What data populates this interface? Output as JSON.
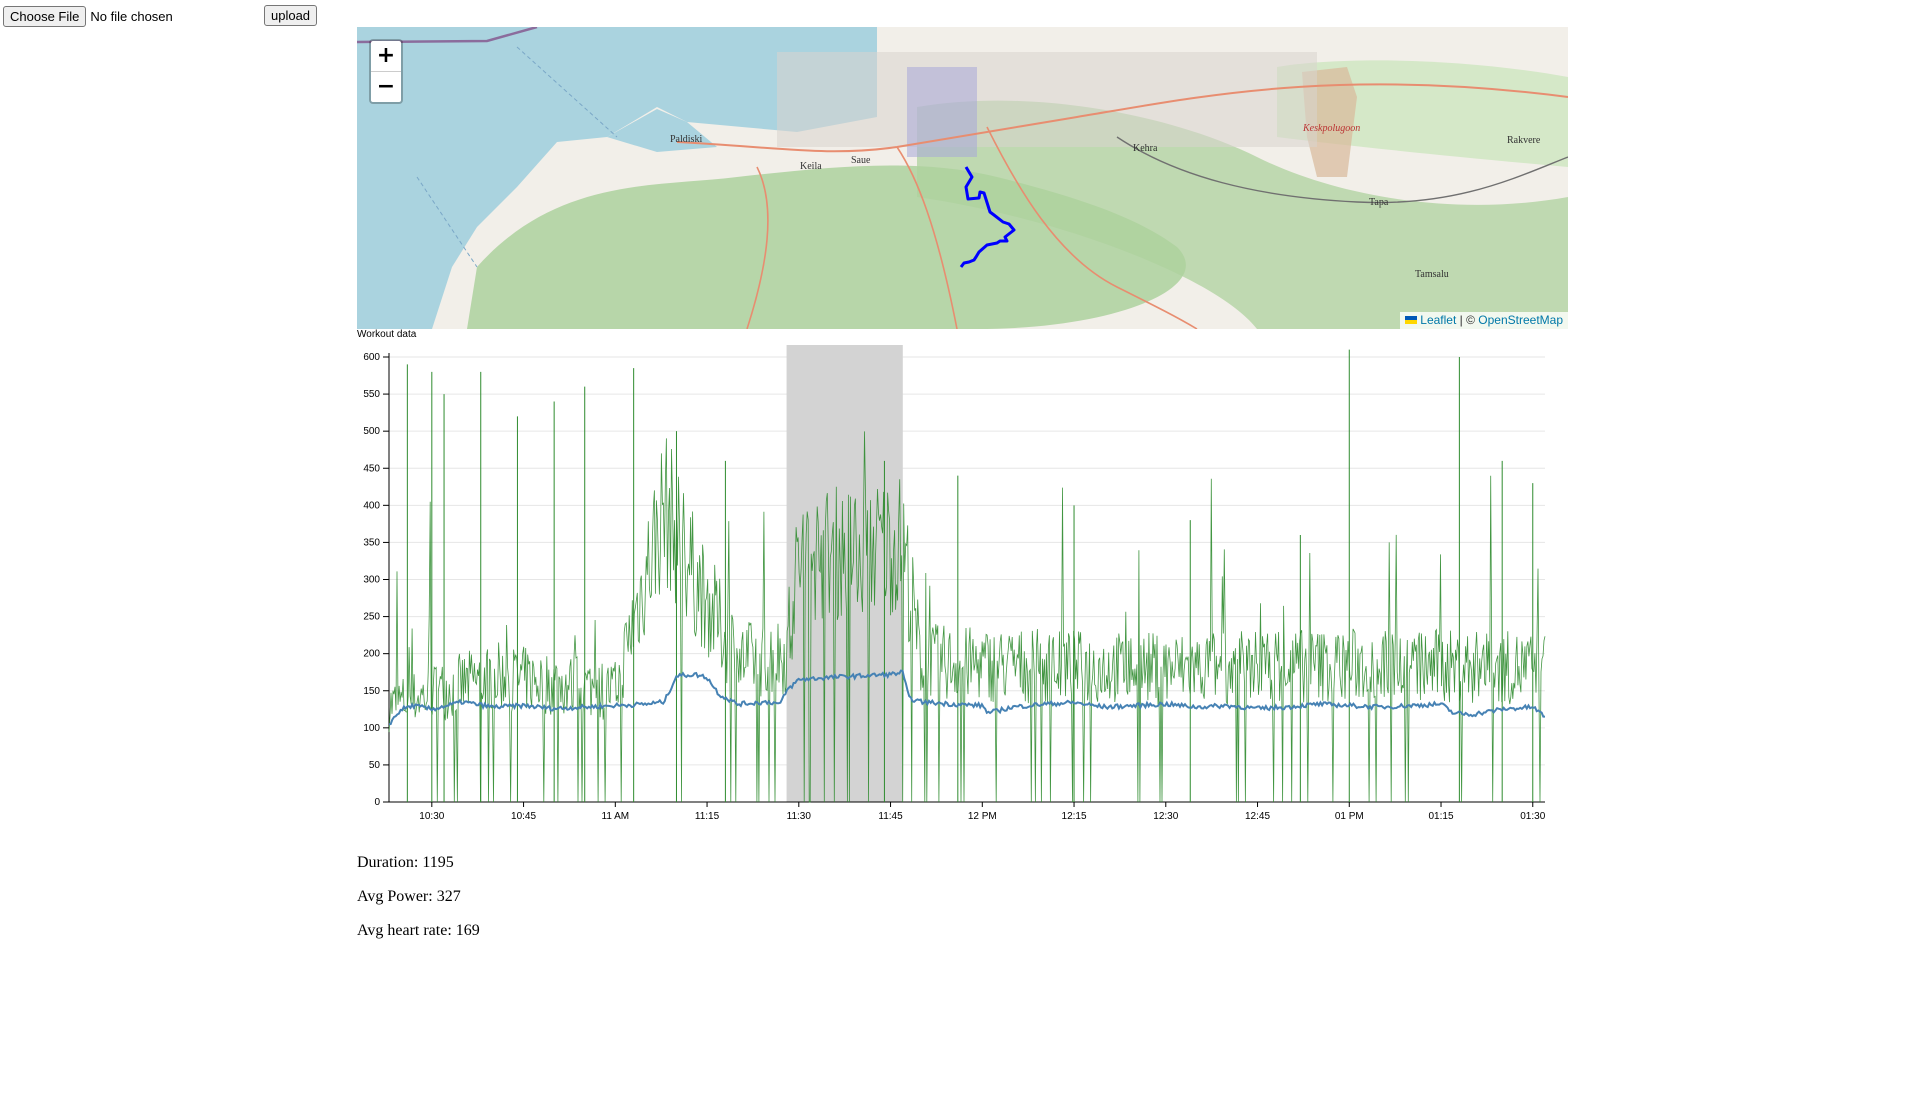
{
  "upload": {
    "choose_label": "Choose File",
    "file_status": "No file chosen",
    "upload_label": "upload"
  },
  "map": {
    "zoom_in": "+",
    "zoom_out": "−",
    "attribution": {
      "leaflet": "Leaflet",
      "separator": " | © ",
      "osm": "OpenStreetMap"
    },
    "places": [
      "Paldiski",
      "Keila",
      "Saue",
      "Kehra",
      "Keskpolugoon",
      "Rakvere",
      "Tapa",
      "Tamsalu"
    ],
    "colors": {
      "sea": "#aad3df",
      "land": "#f2efe9",
      "forest": "#add19e",
      "route": "#0000ff"
    }
  },
  "chart": {
    "title": "Workout data",
    "colors": {
      "power": "#2e8b2e",
      "heart_rate": "#4682b4",
      "highlight": "#d3d3d3"
    }
  },
  "chart_data": {
    "type": "line",
    "ylim": [
      0,
      600
    ],
    "y_ticks": [
      0,
      50,
      100,
      150,
      200,
      250,
      300,
      350,
      400,
      450,
      500,
      550,
      600
    ],
    "x_tick_labels": [
      "10:30",
      "10:45",
      "11 AM",
      "11:15",
      "11:30",
      "11:45",
      "12 PM",
      "12:15",
      "12:30",
      "12:45",
      "01 PM",
      "01:15",
      "01:30"
    ],
    "x_start": "10:23",
    "x_end": "13:32",
    "highlight": [
      "11:28",
      "11:47"
    ],
    "series": [
      {
        "key": "heart_rate",
        "x": [
          "10:23",
          "10:25",
          "10:27",
          "10:30",
          "10:35",
          "10:40",
          "10:45",
          "10:50",
          "10:55",
          "11:00",
          "11:05",
          "11:08",
          "11:10",
          "11:13",
          "11:15",
          "11:17",
          "11:20",
          "11:25",
          "11:27",
          "11:28",
          "11:30",
          "11:35",
          "11:40",
          "11:45",
          "11:47",
          "11:48",
          "11:50",
          "11:55",
          "12:00",
          "12:01",
          "12:05",
          "12:10",
          "12:15",
          "12:20",
          "12:25",
          "12:30",
          "12:35",
          "12:40",
          "12:45",
          "12:50",
          "12:55",
          "13:00",
          "13:05",
          "13:10",
          "13:15",
          "13:17",
          "13:20",
          "13:25",
          "13:30",
          "13:32"
        ],
        "values": [
          105,
          125,
          130,
          125,
          135,
          128,
          130,
          126,
          128,
          130,
          132,
          135,
          170,
          172,
          168,
          145,
          132,
          135,
          132,
          150,
          165,
          168,
          170,
          172,
          175,
          140,
          135,
          132,
          130,
          120,
          128,
          132,
          134,
          128,
          130,
          132,
          128,
          130,
          126,
          128,
          132,
          130,
          128,
          130,
          132,
          120,
          118,
          125,
          128,
          115
        ]
      },
      {
        "key": "power",
        "x": [
          "10:23",
          "10:40",
          "11:00",
          "11:08",
          "11:12",
          "11:20",
          "11:28",
          "11:30",
          "11:40",
          "11:47",
          "11:50",
          "12:00",
          "12:30",
          "13:00",
          "13:32"
        ],
        "values": [
          130,
          170,
          150,
          400,
          320,
          190,
          200,
          330,
          340,
          350,
          190,
          185,
          180,
          185,
          180
        ],
        "spikes": [
          {
            "x": "10:26",
            "y": 590
          },
          {
            "x": "10:30",
            "y": 580
          },
          {
            "x": "10:32",
            "y": 550
          },
          {
            "x": "10:38",
            "y": 580
          },
          {
            "x": "10:44",
            "y": 520
          },
          {
            "x": "10:50",
            "y": 540
          },
          {
            "x": "10:55",
            "y": 560
          },
          {
            "x": "11:03",
            "y": 585
          },
          {
            "x": "11:10",
            "y": 500
          },
          {
            "x": "11:18",
            "y": 460
          },
          {
            "x": "11:44",
            "y": 460
          },
          {
            "x": "11:56",
            "y": 440
          },
          {
            "x": "12:15",
            "y": 400
          },
          {
            "x": "12:34",
            "y": 380
          },
          {
            "x": "12:52",
            "y": 360
          },
          {
            "x": "13:00",
            "y": 610
          },
          {
            "x": "13:18",
            "y": 600
          },
          {
            "x": "13:25",
            "y": 460
          },
          {
            "x": "13:30",
            "y": 430
          }
        ]
      }
    ]
  },
  "stats": {
    "duration": "Duration: 1195",
    "avg_power": "Avg Power: 327",
    "avg_hr": "Avg heart rate: 169"
  }
}
